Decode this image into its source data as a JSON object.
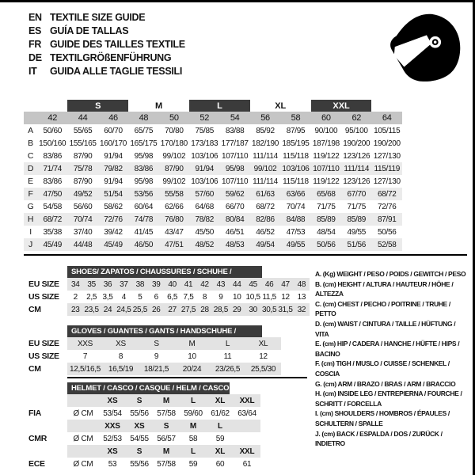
{
  "languages": [
    {
      "code": "EN",
      "title": "TEXTILE SIZE GUIDE"
    },
    {
      "code": "ES",
      "title": "GUÍA DE TALLAS"
    },
    {
      "code": "FR",
      "title": "GUIDE DES TAILLES TEXTILE"
    },
    {
      "code": "DE",
      "title": "TEXTILGRÖßENFÜHRUNG"
    },
    {
      "code": "IT",
      "title": "GUIDA ALLE TAGLIE TESSILI"
    }
  ],
  "colors": {
    "dark_band": "#3b3b3b",
    "size_band": "#c5c5c5",
    "row_stripe": "#ebebeb",
    "mini_stripe": "#e3e3e3",
    "text": "#141414"
  },
  "icons": {
    "helmet": "racing-helmet-icon"
  },
  "size_table": {
    "groups": [
      {
        "label": "",
        "span": 1,
        "dark": false
      },
      {
        "label": "S",
        "span": 2,
        "dark": true
      },
      {
        "label": "M",
        "span": 2,
        "dark": false
      },
      {
        "label": "L",
        "span": 2,
        "dark": true
      },
      {
        "label": "XL",
        "span": 2,
        "dark": false
      },
      {
        "label": "XXL",
        "span": 2,
        "dark": true
      },
      {
        "label": "",
        "span": 1,
        "dark": false
      }
    ],
    "sizes": [
      "42",
      "44",
      "46",
      "48",
      "50",
      "52",
      "54",
      "56",
      "58",
      "60",
      "62",
      "64"
    ],
    "rows": [
      {
        "letter": "A",
        "shaded": false,
        "values": [
          "50/60",
          "55/65",
          "60/70",
          "65/75",
          "70/80",
          "75/85",
          "83/88",
          "85/92",
          "87/95",
          "90/100",
          "95/100",
          "105/115"
        ]
      },
      {
        "letter": "B",
        "shaded": false,
        "values": [
          "150/160",
          "155/165",
          "160/170",
          "165/175",
          "170/180",
          "173/183",
          "177/187",
          "182/190",
          "185/195",
          "187/198",
          "190/200",
          "190/200"
        ]
      },
      {
        "letter": "C",
        "shaded": false,
        "values": [
          "83/86",
          "87/90",
          "91/94",
          "95/98",
          "99/102",
          "103/106",
          "107/110",
          "111/114",
          "115/118",
          "119/122",
          "123/126",
          "127/130"
        ]
      },
      {
        "letter": "D",
        "shaded": true,
        "values": [
          "71/74",
          "75/78",
          "79/82",
          "83/86",
          "87/90",
          "91/94",
          "95/98",
          "99/102",
          "103/106",
          "107/110",
          "111/114",
          "115/119"
        ]
      },
      {
        "letter": "E",
        "shaded": false,
        "values": [
          "83/86",
          "87/90",
          "91/94",
          "95/98",
          "99/102",
          "103/106",
          "107/110",
          "111/114",
          "115/118",
          "119/122",
          "123/126",
          "127/130"
        ]
      },
      {
        "letter": "F",
        "shaded": true,
        "values": [
          "47/50",
          "49/52",
          "51/54",
          "53/56",
          "55/58",
          "57/60",
          "59/62",
          "61/63",
          "63/66",
          "65/68",
          "67/70",
          "68/72"
        ]
      },
      {
        "letter": "G",
        "shaded": false,
        "values": [
          "54/58",
          "56/60",
          "58/62",
          "60/64",
          "62/66",
          "64/68",
          "66/70",
          "68/72",
          "70/74",
          "71/75",
          "71/75",
          "72/76"
        ]
      },
      {
        "letter": "H",
        "shaded": true,
        "values": [
          "68/72",
          "70/74",
          "72/76",
          "74/78",
          "76/80",
          "78/82",
          "80/84",
          "82/86",
          "84/88",
          "85/89",
          "85/89",
          "87/91"
        ]
      },
      {
        "letter": "I",
        "shaded": false,
        "values": [
          "35/38",
          "37/40",
          "39/42",
          "41/45",
          "43/47",
          "45/50",
          "46/51",
          "46/52",
          "47/53",
          "48/54",
          "49/55",
          "50/56"
        ]
      },
      {
        "letter": "J",
        "shaded": true,
        "values": [
          "45/49",
          "44/48",
          "45/49",
          "46/50",
          "47/51",
          "48/52",
          "48/53",
          "49/54",
          "49/55",
          "50/56",
          "51/56",
          "52/58"
        ]
      }
    ]
  },
  "shoes": {
    "title": "SHOES/ ZAPATOS / CHAUSSURES / SCHUHE / SCARPE",
    "rows": [
      {
        "label": "EU SIZE",
        "shaded": true,
        "values": [
          "34",
          "35",
          "36",
          "37",
          "38",
          "39",
          "40",
          "41",
          "42",
          "43",
          "44",
          "45",
          "46",
          "47",
          "48"
        ]
      },
      {
        "label": "US SIZE",
        "shaded": false,
        "values": [
          "2",
          "2,5",
          "3,5",
          "4",
          "5",
          "6",
          "6,5",
          "7,5",
          "8",
          "9",
          "10",
          "10,5",
          "11,5",
          "12",
          "13"
        ]
      },
      {
        "label": "CM",
        "shaded": true,
        "values": [
          "23",
          "23,5",
          "24",
          "24,5",
          "25,5",
          "26",
          "27",
          "27,5",
          "28",
          "28,5",
          "29",
          "30",
          "30,5",
          "31,5",
          "32"
        ]
      }
    ]
  },
  "gloves": {
    "title": "GLOVES / GUANTES / GANTS / HANDSCHUHE / GUANTI",
    "rows": [
      {
        "label": "EU SIZE",
        "shaded": true,
        "values": [
          "XXS",
          "XS",
          "S",
          "M",
          "L",
          "XL"
        ]
      },
      {
        "label": "US SIZE",
        "shaded": false,
        "values": [
          "7",
          "8",
          "9",
          "10",
          "11",
          "12"
        ]
      },
      {
        "label": "CM",
        "shaded": true,
        "values": [
          "12,5/16,5",
          "16,5/19",
          "18/21,5",
          "20/24",
          "23/26,5",
          "25,5/30"
        ]
      }
    ]
  },
  "helmet": {
    "title": "HELMET / CASCO / CASQUE / HELM / CASCO",
    "unit_label": "Ø CM",
    "sections": [
      {
        "label": "FIA",
        "sizes": [
          "XS",
          "S",
          "M",
          "L",
          "XL",
          "XXL"
        ],
        "values": [
          "53/54",
          "55/56",
          "57/58",
          "59/60",
          "61/62",
          "63/64"
        ]
      },
      {
        "label": "CMR",
        "sizes": [
          "XXS",
          "XS",
          "S",
          "M",
          "L",
          ""
        ],
        "values": [
          "52/53",
          "54/55",
          "56/57",
          "58",
          "59",
          ""
        ]
      },
      {
        "label": "ECE",
        "sizes": [
          "XS",
          "S",
          "M",
          "L",
          "XL",
          "XXL"
        ],
        "values": [
          "53",
          "55/56",
          "57/58",
          "59",
          "60",
          "61"
        ]
      }
    ]
  },
  "legend": [
    "A. (Kg) WEIGHT / PESO / POIDS / GEWITCH / PESO",
    "B. (cm) HEIGHT / ALTURA / HAUTEUR / HÖHE / ALTEZZA",
    "C. (cm) CHEST / PECHO / POITRINE / TRUHE / PETTO",
    "D. (cm) WAIST / CINTURA / TAILLE / HÜFTUNG / VITA",
    "E. (cm) HIP / CADERA / HANCHE / HÜFTE / HIPS / BACINO",
    "F. (cm) TIGH / MUSLO / CUISSE / SCHENKEL / COSCIA",
    "G. (cm) ARM / BRAZO / BRAS / ARM / BRACCIO",
    "H. (cm) INSIDE LEG / ENTREPIERNA / FOURCHE / SCHRITT / FORCELLA",
    "I. (cm) SHOULDERS / HOMBROS / ÉPAULES / SCHULTERN / SPALLE",
    "J. (cm) BACK / ESPALDA / DOS / ZURÜCK / INDIETRO"
  ]
}
